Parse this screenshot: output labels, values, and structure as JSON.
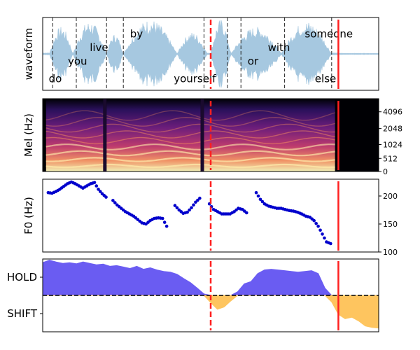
{
  "chart_data": [
    {
      "type": "area",
      "panel": "waveform",
      "ylabel": "waveform",
      "xlim": [
        0,
        10
      ],
      "ylim": [
        -1,
        1
      ],
      "grid": false,
      "words": [
        {
          "text": "do",
          "x": 0.18,
          "y": -0.78
        },
        {
          "text": "you",
          "x": 0.75,
          "y": -0.3
        },
        {
          "text": "live",
          "x": 1.4,
          "y": 0.08
        },
        {
          "text": "by",
          "x": 2.6,
          "y": 0.45
        },
        {
          "text": "yourself",
          "x": 3.9,
          "y": -0.78
        },
        {
          "text": "or",
          "x": 6.1,
          "y": -0.3
        },
        {
          "text": "with",
          "x": 6.7,
          "y": 0.08
        },
        {
          "text": "someone",
          "x": 7.8,
          "y": 0.45
        },
        {
          "text": "else",
          "x": 8.1,
          "y": -0.78
        }
      ],
      "word_boundaries": [
        0.3,
        1.0,
        1.9,
        2.4,
        4.8,
        5.5,
        5.9,
        7.2,
        8.6
      ],
      "speech_end": 8.8,
      "color": "#a6c8e0"
    },
    {
      "type": "heatmap",
      "panel": "mel-spectrogram",
      "ylabel": "Mel (Hz)",
      "ytick_labels": [
        "0",
        "512",
        "1024",
        "2048",
        "4096"
      ],
      "ytick_fractions": [
        0,
        0.18,
        0.37,
        0.59,
        0.82
      ],
      "colormap": "magma"
    },
    {
      "type": "scatter",
      "panel": "f0",
      "ylabel": "F0 (Hz)",
      "ylim": [
        100,
        230
      ],
      "yticks": [
        100,
        150,
        200
      ],
      "color": "#0000cc",
      "segments": [
        {
          "x": [
            0.2,
            0.34,
            0.48,
            0.62,
            0.76,
            0.9,
            1.04,
            1.18,
            1.32,
            1.46,
            1.6,
            1.74,
            1.88,
            2.02,
            2.16,
            2.3
          ],
          "y": [
            206,
            205,
            208,
            212,
            217,
            222,
            225,
            222,
            218,
            214,
            218,
            222,
            224,
            212,
            204,
            198
          ]
        },
        {
          "x": [
            2.55,
            2.7,
            2.85,
            3.0,
            3.15,
            3.3,
            3.45,
            3.6,
            3.75,
            3.9,
            4.05,
            4.2,
            4.35,
            4.5
          ],
          "y": [
            192,
            184,
            178,
            172,
            168,
            164,
            158,
            152,
            150,
            156,
            160,
            161,
            160,
            146
          ]
        },
        {
          "x": [
            4.8,
            4.95,
            5.1,
            5.25,
            5.4,
            5.55,
            5.7
          ],
          "y": [
            183,
            175,
            169,
            171,
            179,
            189,
            196
          ]
        },
        {
          "x": [
            6.05,
            6.2,
            6.35,
            6.5,
            6.65,
            6.8,
            6.95,
            7.1,
            7.25,
            7.4
          ],
          "y": [
            186,
            176,
            172,
            168,
            168,
            168,
            172,
            178,
            176,
            170
          ]
        },
        {
          "x": [
            7.75,
            7.9,
            8.05,
            8.2,
            8.35,
            8.5,
            8.65,
            8.8,
            8.95,
            9.1,
            9.25,
            9.4,
            9.55,
            9.7,
            9.85,
            10.0,
            10.15,
            10.3,
            10.45
          ],
          "y": [
            206,
            194,
            186,
            182,
            180,
            178,
            178,
            176,
            174,
            173,
            171,
            168,
            164,
            162,
            156,
            146,
            132,
            118,
            115
          ]
        }
      ]
    },
    {
      "type": "area",
      "panel": "turn-taking",
      "ytick_labels": [
        "HOLD",
        "SHIFT"
      ],
      "ylim": [
        -1,
        1
      ],
      "xlim": [
        0,
        10
      ],
      "reference_line": 0,
      "hold_color": "#6a5cf2",
      "shift_color": "#fec55f",
      "x": [
        0.0,
        0.2,
        0.4,
        0.6,
        0.8,
        1.0,
        1.2,
        1.4,
        1.6,
        1.8,
        2.0,
        2.2,
        2.4,
        2.6,
        2.8,
        3.0,
        3.2,
        3.4,
        3.6,
        3.8,
        4.0,
        4.2,
        4.4,
        4.6,
        4.8,
        5.0,
        5.2,
        5.4,
        5.6,
        5.8,
        6.0,
        6.2,
        6.4,
        6.6,
        6.8,
        7.0,
        7.2,
        7.4,
        7.6,
        7.8,
        8.0,
        8.2,
        8.4,
        8.6,
        8.8,
        9.0,
        9.2,
        9.4,
        9.6,
        9.8,
        10.0
      ],
      "y": [
        0.9,
        0.97,
        0.92,
        0.88,
        0.9,
        0.87,
        0.92,
        0.88,
        0.84,
        0.86,
        0.8,
        0.82,
        0.78,
        0.74,
        0.8,
        0.72,
        0.76,
        0.7,
        0.66,
        0.64,
        0.58,
        0.46,
        0.35,
        0.2,
        0.04,
        -0.2,
        -0.38,
        -0.32,
        -0.15,
        0.1,
        0.32,
        0.38,
        0.6,
        0.7,
        0.72,
        0.7,
        0.68,
        0.66,
        0.64,
        0.66,
        0.68,
        0.6,
        0.2,
        -0.18,
        -0.52,
        -0.64,
        -0.6,
        -0.7,
        -0.84,
        -0.88,
        -0.9
      ]
    }
  ],
  "markers": {
    "dashed_x": 5.0,
    "solid_x": 8.8,
    "color": "#ff2020"
  }
}
